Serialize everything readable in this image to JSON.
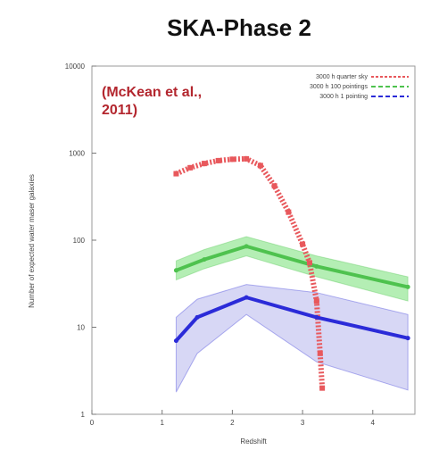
{
  "chart_data": {
    "type": "line",
    "title": "SKA-Phase 2",
    "xlabel": "Redshift",
    "ylabel": "Number of expected water maser galaxies",
    "xlim": [
      0,
      4.6
    ],
    "ylim": [
      1,
      10000
    ],
    "yscale": "log",
    "xticks": [
      "0",
      "1",
      "2",
      "3",
      "4"
    ],
    "yticks": [
      "1",
      "10",
      "100",
      "1000",
      "10000"
    ],
    "annotation": "(McKean et al., 2011)",
    "legend_position": "top-right",
    "series": [
      {
        "name": "3000 h quarter sky",
        "color": "#e8585c",
        "style": "dashed-with-points",
        "x": [
          1.2,
          1.4,
          1.6,
          1.8,
          2.0,
          2.2,
          2.4,
          2.6,
          2.8,
          3.0,
          3.1,
          3.2,
          3.25,
          3.28
        ],
        "y": [
          580,
          680,
          760,
          820,
          850,
          860,
          720,
          420,
          210,
          90,
          55,
          20,
          5,
          2
        ]
      },
      {
        "name": "3000 h 100 pointings",
        "color": "#4ec24e",
        "band_color": "#9be89b",
        "style": "line-with-band",
        "x": [
          1.2,
          1.6,
          2.2,
          3.2,
          4.5
        ],
        "y": [
          45,
          60,
          85,
          50,
          29
        ],
        "y_low": [
          35,
          47,
          66,
          38,
          20
        ],
        "y_high": [
          58,
          78,
          110,
          66,
          38
        ]
      },
      {
        "name": "3000 h 1 pointing",
        "color": "#2b2bd8",
        "band_color": "#c9c9f2",
        "style": "line-with-band",
        "x": [
          1.2,
          1.5,
          2.2,
          3.2,
          4.5
        ],
        "y": [
          7,
          13,
          22,
          13,
          7.5
        ],
        "y_low": [
          1.8,
          5,
          14,
          4,
          1.9
        ],
        "y_high": [
          13,
          21,
          31,
          25,
          14
        ]
      }
    ]
  }
}
